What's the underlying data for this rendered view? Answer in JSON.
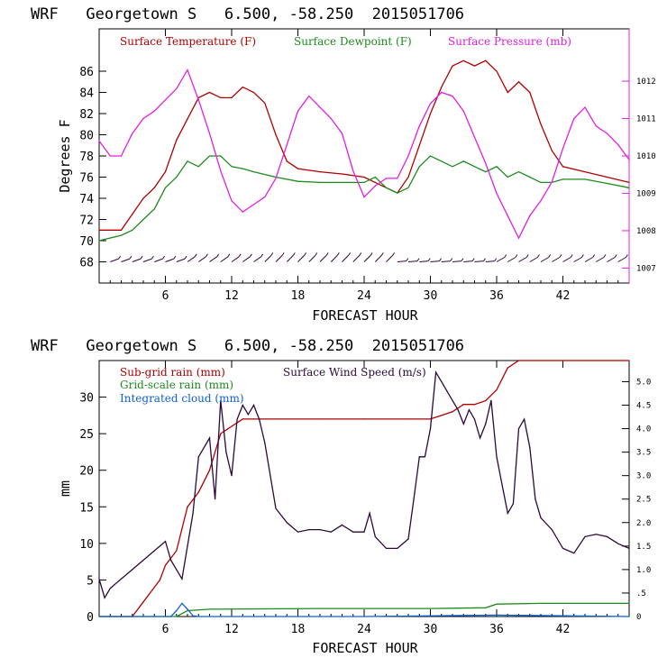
{
  "header_top": "WRF   Georgetown S   6.500, -58.250  2015051706",
  "header_bottom": "WRF   Georgetown S   6.500, -58.250  2015051706",
  "colors": {
    "temperature": "#b00000",
    "dewpoint": "#1f8a1f",
    "pressure": "#e020e0",
    "wind": "#2a0a3a",
    "subgrid_rain": "#b00000",
    "gridscale_rain": "#1f8a1f",
    "cloud": "#1060d0"
  },
  "chart_data": [
    {
      "type": "line",
      "title": "",
      "xlabel": "FORECAST HOUR",
      "ylabel": "Degrees F",
      "xlim": [
        0,
        48
      ],
      "ylim": [
        66,
        90
      ],
      "xticks": [
        "6",
        "12",
        "18",
        "24",
        "30",
        "36",
        "42"
      ],
      "yticks": [
        "68",
        "70",
        "72",
        "74",
        "76",
        "78",
        "80",
        "82",
        "84",
        "86"
      ],
      "y2ticks": [
        "1007",
        "1008",
        "1009",
        "1010",
        "1011",
        "1012"
      ],
      "y2lim": [
        1006.6,
        1013.4
      ],
      "legend": [
        "Surface Temperature (F)",
        "Surface Dewpoint (F)",
        "Surface Pressure (mb)"
      ],
      "wind_barbs": "row of wind barbs along y=68",
      "series": [
        {
          "name": "Surface Temperature (F)",
          "x": [
            0,
            2,
            3,
            4,
            5,
            6,
            7,
            8,
            9,
            10,
            11,
            12,
            13,
            14,
            15,
            16,
            17,
            18,
            20,
            22,
            24,
            25,
            26,
            27,
            28,
            29,
            30,
            31,
            32,
            33,
            34,
            35,
            36,
            37,
            38,
            39,
            40,
            41,
            42,
            44,
            46,
            48
          ],
          "y": [
            71,
            71,
            72.5,
            74,
            75,
            76.5,
            79.5,
            81.5,
            83.5,
            84,
            83.5,
            83.5,
            84.5,
            84,
            83,
            80,
            77.5,
            76.8,
            76.5,
            76.3,
            76,
            75.5,
            75,
            74.5,
            76,
            79,
            82,
            84.5,
            86.5,
            87,
            86.5,
            87,
            86,
            84,
            85,
            84,
            81,
            78.5,
            77,
            76.5,
            76,
            75.5
          ]
        },
        {
          "name": "Surface Dewpoint (F)",
          "x": [
            0,
            2,
            3,
            4,
            5,
            6,
            7,
            8,
            9,
            10,
            11,
            12,
            13,
            14,
            16,
            18,
            20,
            22,
            24,
            25,
            26,
            27,
            28,
            29,
            30,
            31,
            32,
            33,
            34,
            35,
            36,
            37,
            38,
            39,
            40,
            41,
            42,
            44,
            46,
            48
          ],
          "y": [
            70,
            70.5,
            71,
            72,
            73,
            75,
            76,
            77.5,
            77,
            78,
            78,
            77,
            76.8,
            76.5,
            76,
            75.6,
            75.5,
            75.5,
            75.5,
            76,
            75,
            74.5,
            75,
            77,
            78,
            77.5,
            77,
            77.5,
            77,
            76.5,
            77,
            76,
            76.5,
            76,
            75.5,
            75.5,
            75.8,
            75.8,
            75.4,
            75
          ]
        },
        {
          "name": "Surface Pressure (mb)",
          "x": [
            0,
            1,
            2,
            3,
            4,
            5,
            6,
            7,
            8,
            9,
            10,
            11,
            12,
            13,
            14,
            15,
            16,
            17,
            18,
            19,
            20,
            21,
            22,
            23,
            24,
            25,
            26,
            27,
            28,
            29,
            30,
            31,
            32,
            33,
            34,
            35,
            36,
            37,
            38,
            39,
            40,
            41,
            42,
            43,
            44,
            45,
            46,
            47,
            48
          ],
          "y": [
            1010.4,
            1010.0,
            1010.0,
            1010.6,
            1011.0,
            1011.2,
            1011.5,
            1011.8,
            1012.3,
            1011.5,
            1010.6,
            1009.6,
            1008.8,
            1008.5,
            1008.7,
            1008.9,
            1009.4,
            1010.3,
            1011.2,
            1011.6,
            1011.3,
            1011.0,
            1010.6,
            1009.6,
            1008.9,
            1009.2,
            1009.4,
            1009.4,
            1010.0,
            1010.8,
            1011.4,
            1011.7,
            1011.6,
            1011.2,
            1010.5,
            1009.8,
            1009.0,
            1008.4,
            1007.8,
            1008.4,
            1008.8,
            1009.3,
            1010.2,
            1011.0,
            1011.3,
            1010.8,
            1010.6,
            1010.3,
            1009.9
          ]
        }
      ]
    },
    {
      "type": "line",
      "title": "",
      "xlabel": "FORECAST HOUR",
      "ylabel": "mm",
      "xlim": [
        0,
        48
      ],
      "ylim": [
        0,
        35
      ],
      "xticks": [
        "6",
        "12",
        "18",
        "24",
        "30",
        "36",
        "42"
      ],
      "yticks": [
        "0",
        "5",
        "10",
        "15",
        "20",
        "25",
        "30"
      ],
      "y2ticks": [
        "0",
        ".5",
        "1.0",
        "1.5",
        "2.0",
        "2.5",
        "3.0",
        "3.5",
        "4.0",
        "4.5",
        "5.0"
      ],
      "y2lim": [
        0,
        5.45
      ],
      "legend": [
        "Sub-grid rain (mm)",
        "Surface Wind Speed (m/s)",
        "Grid-scale rain (mm)",
        "Integrated cloud (mm)"
      ],
      "series": [
        {
          "name": "Sub-grid rain (mm)",
          "x": [
            0,
            3,
            4,
            5,
            5.5,
            6,
            6.5,
            7,
            7.5,
            8,
            9,
            10,
            11,
            12,
            13,
            14,
            16,
            20,
            24,
            28,
            30,
            31,
            32,
            33,
            34,
            35,
            36,
            36.5,
            37,
            38,
            40,
            44,
            48
          ],
          "y": [
            0,
            0,
            2,
            4,
            5,
            7,
            8,
            9,
            12,
            15,
            17,
            20,
            25,
            26,
            27,
            27,
            27,
            27,
            27,
            27,
            27,
            27.5,
            28,
            29,
            29,
            29.5,
            31,
            32.5,
            34,
            35,
            35,
            35,
            35
          ]
        },
        {
          "name": "Grid-scale rain (mm)",
          "x": [
            0,
            7,
            8,
            10,
            20,
            30,
            35,
            36,
            40,
            48
          ],
          "y": [
            0,
            0,
            0.8,
            1,
            1.1,
            1.1,
            1.2,
            1.7,
            1.8,
            1.8
          ]
        },
        {
          "name": "Integrated cloud (mm)",
          "x": [
            0,
            6.5,
            7,
            7.5,
            8,
            8.5,
            9,
            12,
            24,
            36,
            48
          ],
          "y": [
            0,
            0,
            0.8,
            1.8,
            1.0,
            0.1,
            0,
            0,
            0,
            0.2,
            0
          ]
        },
        {
          "name": "Surface Wind Speed (m/s)",
          "x": [
            0,
            0.5,
            1,
            2,
            3,
            4,
            5,
            6,
            6.5,
            7,
            7.5,
            8,
            8.5,
            9,
            10,
            10.5,
            11,
            11.5,
            12,
            12.5,
            13,
            13.5,
            14,
            14.5,
            15,
            15.5,
            16,
            17,
            18,
            19,
            20,
            21,
            22,
            23,
            24,
            24.5,
            25,
            26,
            27,
            28,
            28.5,
            29,
            29.5,
            30,
            30.5,
            31,
            31.5,
            32,
            32.5,
            33,
            33.5,
            34,
            34.5,
            35,
            35.5,
            36,
            36.5,
            37,
            37.5,
            38,
            38.5,
            39,
            39.5,
            40,
            41,
            42,
            43,
            44,
            45,
            46,
            47,
            48
          ],
          "y": [
            0.8,
            0.4,
            0.6,
            0.8,
            1.0,
            1.2,
            1.4,
            1.6,
            1.2,
            1.0,
            0.8,
            1.5,
            2.2,
            3.4,
            3.8,
            2.5,
            4.6,
            3.5,
            3.0,
            4.2,
            4.5,
            4.3,
            4.5,
            4.2,
            3.7,
            3.0,
            2.3,
            2.0,
            1.8,
            1.85,
            1.85,
            1.8,
            1.95,
            1.8,
            1.8,
            2.2,
            1.7,
            1.45,
            1.45,
            1.65,
            2.5,
            3.4,
            3.4,
            4.0,
            5.2,
            5.0,
            4.8,
            4.6,
            4.4,
            4.1,
            4.4,
            4.2,
            3.8,
            4.1,
            4.6,
            3.4,
            2.8,
            2.2,
            2.4,
            4.0,
            4.2,
            3.6,
            2.5,
            2.1,
            1.85,
            1.45,
            1.35,
            1.7,
            1.75,
            1.7,
            1.55,
            1.45
          ]
        }
      ]
    }
  ]
}
